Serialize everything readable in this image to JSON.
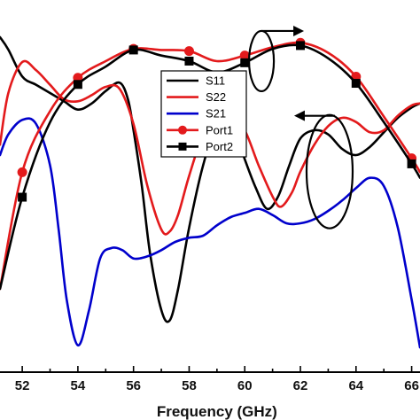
{
  "chart_data": {
    "type": "line",
    "title": "",
    "xlabel": "Frequency (GHz)",
    "ylabel": "",
    "xlim": [
      51.2,
      66.3
    ],
    "x_ticks": [
      52,
      54,
      56,
      58,
      60,
      62,
      64,
      66
    ],
    "grid": false,
    "legend_placement": "center-right",
    "series": [
      {
        "name": "S11",
        "color": "#000000",
        "marker": "none",
        "axis": "left",
        "x": [
          51.2,
          51.5,
          52.0,
          52.5,
          53.0,
          53.5,
          54.0,
          54.5,
          55.0,
          55.5,
          55.8,
          56.0,
          56.3,
          56.6,
          57.0,
          57.3,
          57.6,
          58.0,
          58.5,
          59.0,
          59.3,
          59.7,
          60.0,
          60.4,
          60.8,
          61.2,
          61.6,
          62.0,
          62.5,
          63.0,
          63.5,
          64.0,
          64.5,
          65.0,
          65.5,
          66.0,
          66.3
        ],
        "y": [
          -10.3,
          -10.9,
          -12.2,
          -12.6,
          -13.0,
          -13.4,
          -13.8,
          -13.5,
          -12.9,
          -12.5,
          -13.3,
          -14.8,
          -17.5,
          -20.8,
          -23.5,
          -24.0,
          -22.5,
          -19.5,
          -16.5,
          -14.5,
          -14.3,
          -15.0,
          -16.2,
          -17.6,
          -18.6,
          -18.0,
          -16.5,
          -15.2,
          -14.8,
          -15.0,
          -15.7,
          -16.0,
          -15.6,
          -14.9,
          -14.2,
          -13.7,
          -13.5
        ]
      },
      {
        "name": "S22",
        "color": "#e31a1c",
        "marker": "none",
        "axis": "left",
        "x": [
          51.2,
          51.5,
          52.0,
          52.5,
          53.0,
          53.5,
          54.0,
          54.5,
          55.0,
          55.5,
          56.0,
          56.5,
          57.0,
          57.3,
          57.6,
          58.0,
          58.5,
          59.0,
          59.5,
          60.0,
          60.5,
          61.0,
          61.3,
          61.7,
          62.0,
          62.5,
          63.0,
          63.5,
          64.0,
          64.5,
          65.0,
          65.5,
          66.0,
          66.3
        ],
        "y": [
          -15.5,
          -13.0,
          -11.5,
          -11.9,
          -12.6,
          -13.3,
          -13.4,
          -13.1,
          -12.7,
          -12.8,
          -14.5,
          -17.5,
          -19.6,
          -19.7,
          -18.9,
          -17.0,
          -15.0,
          -14.0,
          -14.0,
          -14.8,
          -16.5,
          -18.0,
          -18.5,
          -17.8,
          -16.8,
          -15.5,
          -14.6,
          -14.2,
          -14.4,
          -14.9,
          -14.8,
          -14.1,
          -13.6,
          -13.5
        ]
      },
      {
        "name": "S21",
        "color": "#0000cc",
        "marker": "none",
        "axis": "left",
        "x": [
          51.2,
          51.5,
          52.0,
          52.5,
          53.0,
          53.3,
          53.6,
          54.0,
          54.4,
          54.8,
          55.2,
          55.6,
          56.0,
          56.5,
          57.0,
          57.5,
          58.0,
          58.5,
          59.0,
          59.5,
          60.0,
          60.5,
          61.0,
          61.5,
          62.0,
          62.5,
          63.0,
          63.5,
          64.0,
          64.5,
          65.0,
          65.5,
          66.0,
          66.3
        ],
        "y": [
          -16.0,
          -15.0,
          -14.3,
          -14.5,
          -16.5,
          -19.5,
          -23.0,
          -25.2,
          -23.5,
          -21.0,
          -20.5,
          -20.6,
          -21.0,
          -20.9,
          -20.6,
          -20.2,
          -20.0,
          -19.9,
          -19.4,
          -19.0,
          -18.8,
          -18.6,
          -18.9,
          -19.3,
          -19.3,
          -19.1,
          -18.7,
          -18.2,
          -17.6,
          -17.1,
          -17.5,
          -19.5,
          -23.0,
          -25.3
        ]
      },
      {
        "name": "Port1",
        "color": "#e31a1c",
        "marker": "circle",
        "axis": "right",
        "x": [
          51.2,
          52.0,
          53.0,
          54.0,
          55.0,
          56.0,
          57.0,
          58.0,
          59.0,
          60.0,
          61.0,
          62.0,
          63.0,
          64.0,
          65.0,
          66.0,
          66.3
        ],
        "y": [
          5.5,
          7.6,
          8.7,
          9.3,
          9.6,
          9.82,
          9.8,
          9.78,
          9.6,
          9.7,
          9.85,
          9.93,
          9.75,
          9.32,
          8.6,
          7.85,
          7.6
        ]
      },
      {
        "name": "Port2",
        "color": "#000000",
        "marker": "square",
        "axis": "right",
        "x": [
          51.2,
          52.0,
          53.0,
          54.0,
          55.0,
          56.0,
          57.0,
          58.0,
          59.0,
          60.0,
          61.0,
          62.0,
          63.0,
          64.0,
          65.0,
          66.0,
          66.3
        ],
        "y": [
          5.5,
          7.15,
          8.5,
          9.18,
          9.5,
          9.8,
          9.7,
          9.6,
          9.4,
          9.57,
          9.82,
          9.88,
          9.65,
          9.2,
          8.5,
          7.75,
          7.5
        ]
      }
    ],
    "annotations": [
      {
        "type": "ellipse-arrow",
        "points_to": "right",
        "applies_to": [
          "Port1",
          "Port2"
        ]
      },
      {
        "type": "ellipse-arrow",
        "points_to": "left",
        "applies_to": [
          "S11",
          "S22",
          "S21"
        ]
      }
    ]
  }
}
